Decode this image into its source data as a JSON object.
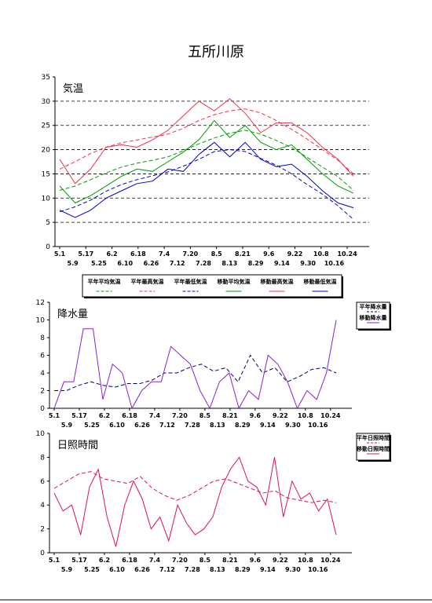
{
  "page": {
    "title": "五所川原"
  },
  "colors": {
    "avg": "#009900",
    "max": "#ee3344",
    "min": "#0000cc",
    "precip_norm": "#000066",
    "precip": "#8822cc",
    "sun": "#dd1155"
  },
  "chart_data": [
    {
      "id": "temp",
      "type": "line",
      "title": "気温",
      "ylim": [
        0,
        35
      ],
      "yticks": [
        0,
        5,
        10,
        15,
        20,
        25,
        30,
        35
      ],
      "grid": "horizontal-dashed",
      "xticks_top": [
        "5.1",
        "5.17",
        "6.2",
        "6.18",
        "7.4",
        "7.20",
        "8.5",
        "8.21",
        "9.6",
        "9.22",
        "10.8",
        "10.24"
      ],
      "xticks_bottom": [
        "5.9",
        "5.25",
        "6.10",
        "6.26",
        "7.12",
        "7.28",
        "8.13",
        "8.29",
        "9.14",
        "9.30",
        "10.16"
      ],
      "legend_position": "bottom",
      "series": [
        {
          "name": "平年平均気温",
          "style": "dashed",
          "color": "#009900",
          "y": [
            11.6,
            12.5,
            13.8,
            15.2,
            16.4,
            17.2,
            17.8,
            18.5,
            19.8,
            21.2,
            22.4,
            23.4,
            24.0,
            23.2,
            21.9,
            20.4,
            18.4,
            16.4,
            14.4,
            11.6
          ]
        },
        {
          "name": "平年最高気温",
          "style": "dashed",
          "color": "#ee3344",
          "y": [
            16.0,
            17.5,
            19.2,
            20.5,
            21.4,
            22.0,
            22.6,
            23.2,
            24.4,
            26.0,
            27.2,
            28.0,
            28.4,
            27.6,
            26.0,
            24.2,
            22.2,
            20.0,
            17.8,
            15.0
          ]
        },
        {
          "name": "平年最低気温",
          "style": "dashed",
          "color": "#0000cc",
          "y": [
            7.2,
            8.2,
            9.6,
            11.4,
            12.8,
            13.8,
            14.6,
            15.4,
            16.6,
            18.0,
            19.6,
            20.0,
            19.6,
            18.2,
            16.8,
            15.0,
            12.8,
            10.8,
            8.4,
            5.6
          ]
        },
        {
          "name": "移動平均気温",
          "style": "solid",
          "color": "#009900",
          "y": [
            12.5,
            9.0,
            10.5,
            12.5,
            14.5,
            16.0,
            15.5,
            17.5,
            19.5,
            22.0,
            26.0,
            22.5,
            25.0,
            21.5,
            20.0,
            21.0,
            18.0,
            15.0,
            12.5,
            11.0
          ]
        },
        {
          "name": "移動最高気温",
          "style": "solid",
          "color": "#ee3344",
          "y": [
            18.0,
            13.0,
            16.0,
            20.5,
            21.0,
            20.5,
            22.0,
            24.0,
            27.0,
            30.0,
            28.0,
            30.5,
            27.5,
            23.5,
            25.5,
            25.5,
            23.5,
            20.5,
            18.0,
            14.5
          ]
        },
        {
          "name": "移動最低気温",
          "style": "solid",
          "color": "#0000cc",
          "y": [
            7.5,
            6.0,
            7.5,
            10.0,
            11.5,
            13.0,
            13.5,
            16.0,
            15.5,
            19.0,
            21.5,
            18.5,
            21.5,
            18.0,
            16.5,
            17.0,
            14.5,
            11.5,
            9.0,
            8.0
          ]
        }
      ]
    },
    {
      "id": "precip",
      "type": "line",
      "title": "降水量",
      "ylim": [
        0,
        12
      ],
      "yticks": [
        0,
        2,
        4,
        6,
        8,
        10,
        12
      ],
      "xticks_top": [
        "5.1",
        "5.17",
        "6.2",
        "6.18",
        "7.4",
        "7.20",
        "8.5",
        "8.21",
        "9.6",
        "9.22",
        "10.8",
        "10.24"
      ],
      "xticks_bottom": [
        "5.9",
        "5.25",
        "6.10",
        "6.26",
        "7.12",
        "7.28",
        "8.13",
        "8.29",
        "9.14",
        "9.30",
        "10.16"
      ],
      "legend_position": "right",
      "series": [
        {
          "name": "平年降水量",
          "style": "dashed",
          "color": "#000066",
          "y": [
            2.0,
            2.0,
            2.6,
            3.0,
            2.6,
            2.4,
            2.8,
            2.8,
            3.2,
            4.0,
            4.0,
            4.6,
            5.0,
            4.2,
            4.6,
            3.0,
            6.0,
            4.0,
            4.6,
            3.0,
            3.6,
            4.4,
            4.6,
            4.0
          ]
        },
        {
          "name": "移動降水量",
          "style": "solid",
          "color": "#8822cc",
          "y": [
            0.0,
            3.0,
            3.0,
            9.0,
            9.0,
            1.0,
            5.0,
            4.0,
            0.0,
            2.0,
            3.0,
            3.0,
            7.0,
            6.0,
            5.0,
            2.0,
            0.0,
            3.0,
            4.0,
            0.0,
            2.0,
            1.0,
            6.0,
            5.0,
            3.0,
            0.0,
            2.0,
            1.0,
            4.0,
            10.0
          ]
        }
      ]
    },
    {
      "id": "sun",
      "type": "line",
      "title": "日照時間",
      "ylim": [
        0,
        10
      ],
      "yticks": [
        0,
        2,
        4,
        6,
        8,
        10
      ],
      "xticks_top": [
        "5.1",
        "5.17",
        "6.2",
        "6.18",
        "7.4",
        "7.20",
        "8.5",
        "8.21",
        "9.6",
        "9.22",
        "10.8",
        "10.24"
      ],
      "xticks_bottom": [
        "5.9",
        "5.25",
        "6.10",
        "6.26",
        "7.12",
        "7.28",
        "8.13",
        "8.29",
        "9.14",
        "9.30",
        "10.16"
      ],
      "legend_position": "right",
      "series": [
        {
          "name": "平年日照時間",
          "style": "dashed",
          "color": "#dd1155",
          "y": [
            5.4,
            6.0,
            6.6,
            6.8,
            6.2,
            6.0,
            5.8,
            6.4,
            5.4,
            4.8,
            4.4,
            4.8,
            5.4,
            6.0,
            6.2,
            5.8,
            5.4,
            5.0,
            5.2,
            4.6,
            4.4,
            4.2,
            4.4,
            4.2
          ]
        },
        {
          "name": "移動日照時間",
          "style": "solid",
          "color": "#dd1155",
          "y": [
            5.0,
            3.5,
            4.0,
            1.5,
            5.5,
            7.0,
            3.0,
            0.5,
            4.0,
            6.0,
            4.5,
            2.0,
            3.0,
            1.0,
            4.0,
            2.5,
            1.5,
            2.0,
            3.0,
            5.5,
            7.0,
            8.0,
            6.0,
            5.5,
            4.0,
            8.0,
            3.0,
            6.0,
            4.5,
            5.0,
            3.5,
            4.5,
            1.5
          ]
        }
      ]
    }
  ]
}
